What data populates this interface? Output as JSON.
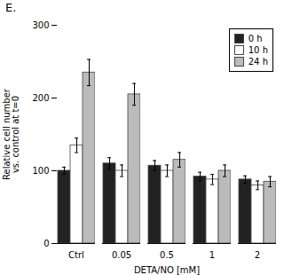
{
  "chart_data": {
    "type": "bar",
    "title": "E.",
    "categories": [
      "Ctrl",
      "0.05",
      "0.5",
      "1",
      "2"
    ],
    "xlabel": "DETA/NO [mM]",
    "ylabel": "Relative cell number\nvs. control at t=0",
    "ylim": [
      0,
      300
    ],
    "yticks": [
      0,
      100,
      200,
      300
    ],
    "grid": false,
    "legend": "upper right",
    "series": [
      {
        "name": "0 h",
        "color": "#222222",
        "values": [
          100,
          110,
          107,
          92,
          88
        ],
        "errors": [
          5,
          8,
          7,
          6,
          5
        ]
      },
      {
        "name": "10 h",
        "color": "#ffffff",
        "values": [
          135,
          100,
          100,
          88,
          80
        ],
        "errors": [
          10,
          8,
          8,
          7,
          6
        ]
      },
      {
        "name": "24 h",
        "color": "#bbbbbb",
        "values": [
          235,
          205,
          115,
          100,
          85
        ],
        "errors": [
          18,
          15,
          10,
          8,
          7
        ]
      }
    ]
  }
}
